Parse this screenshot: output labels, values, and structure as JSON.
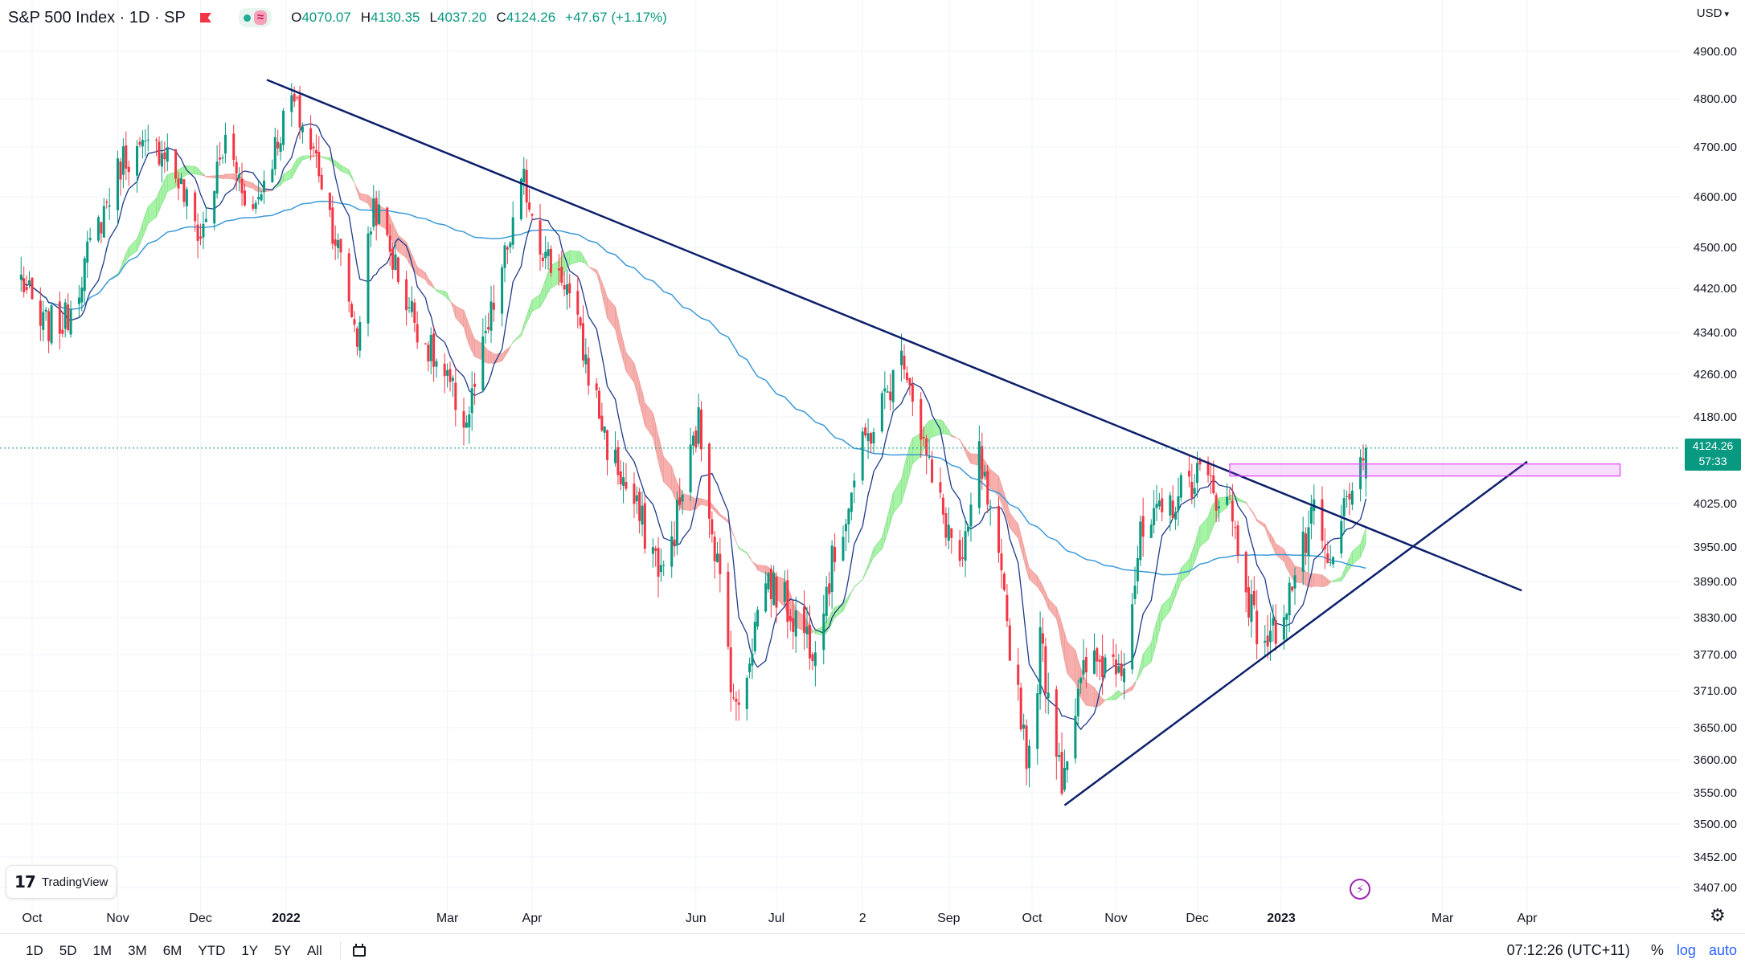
{
  "header": {
    "symbol": "S&P 500 Index · 1D · SP",
    "ohlc": [
      {
        "k": "O",
        "v": "4070.07"
      },
      {
        "k": "H",
        "v": "4130.35"
      },
      {
        "k": "L",
        "v": "4037.20"
      },
      {
        "k": "C",
        "v": "4124.26"
      },
      {
        "k": "",
        "v": "+47.67 (+1.17%)"
      }
    ],
    "status_symbol": "≈",
    "currency": "USD"
  },
  "last_price": {
    "value": "4124.26",
    "countdown": "57:33"
  },
  "logo": {
    "text": "TradingView"
  },
  "ranges": [
    "1D",
    "5D",
    "1M",
    "3M",
    "6M",
    "YTD",
    "1Y",
    "5Y",
    "All"
  ],
  "footer": {
    "clock": "07:12:26 (UTC+11)",
    "pct": "%",
    "log": "log",
    "auto": "auto"
  },
  "colors": {
    "up": "#089981",
    "down": "#f23645",
    "trend": "#0c1f6b",
    "sma_fast": "#1e3a8a",
    "sma_slow": "#3b9ad9",
    "ribbon_bull": "#a6f5a6",
    "ribbon_bear": "#f7b0ad",
    "zone": "#e040fb"
  },
  "chart_data": {
    "type": "candlestick",
    "title": "S&P 500 Index · 1D · SP",
    "xlabel": "",
    "ylabel": "",
    "ylim": [
      3380,
      4940
    ],
    "y_ticks": [
      4900,
      4800,
      4700,
      4600,
      4500,
      4420,
      4340,
      4260,
      4180,
      4025,
      3950,
      3890,
      3830,
      3770,
      3710,
      3650,
      3600,
      3550,
      3500,
      3452,
      3407
    ],
    "x_ticks": [
      "Oct",
      "Nov",
      "Dec",
      "2022",
      "Mar",
      "Apr",
      "Jun",
      "Jul",
      "2",
      "Sep",
      "Oct",
      "Nov",
      "Dec",
      "2023",
      "Mar",
      "Apr"
    ],
    "anchors": [
      {
        "date": "2021-09-27",
        "close": 4440
      },
      {
        "date": "2021-10-04",
        "close": 4350
      },
      {
        "date": "2021-10-13",
        "close": 4360
      },
      {
        "date": "2021-11-03",
        "close": 4680
      },
      {
        "date": "2021-11-18",
        "close": 4700
      },
      {
        "date": "2021-12-01",
        "close": 4520
      },
      {
        "date": "2021-12-10",
        "close": 4710
      },
      {
        "date": "2021-12-20",
        "close": 4570
      },
      {
        "date": "2022-01-03",
        "close": 4800
      },
      {
        "date": "2022-01-13",
        "close": 4660
      },
      {
        "date": "2022-01-27",
        "close": 4330
      },
      {
        "date": "2022-02-02",
        "close": 4590
      },
      {
        "date": "2022-02-14",
        "close": 4400
      },
      {
        "date": "2022-02-24",
        "close": 4290
      },
      {
        "date": "2022-03-08",
        "close": 4170
      },
      {
        "date": "2022-03-29",
        "close": 4630
      },
      {
        "date": "2022-04-06",
        "close": 4480
      },
      {
        "date": "2022-04-13",
        "close": 4440
      },
      {
        "date": "2022-04-29",
        "close": 4130
      },
      {
        "date": "2022-05-20",
        "close": 3900
      },
      {
        "date": "2022-06-02",
        "close": 4170
      },
      {
        "date": "2022-06-16",
        "close": 3670
      },
      {
        "date": "2022-06-27",
        "close": 3900
      },
      {
        "date": "2022-07-14",
        "close": 3790
      },
      {
        "date": "2022-08-01",
        "close": 4120
      },
      {
        "date": "2022-08-16",
        "close": 4300
      },
      {
        "date": "2022-08-26",
        "close": 4060
      },
      {
        "date": "2022-09-06",
        "close": 3910
      },
      {
        "date": "2022-09-12",
        "close": 4110
      },
      {
        "date": "2022-09-30",
        "close": 3590
      },
      {
        "date": "2022-10-04",
        "close": 3790
      },
      {
        "date": "2022-10-12",
        "close": 3580
      },
      {
        "date": "2022-10-21",
        "close": 3750
      },
      {
        "date": "2022-11-04",
        "close": 3770
      },
      {
        "date": "2022-11-10",
        "close": 3960
      },
      {
        "date": "2022-12-01",
        "close": 4080
      },
      {
        "date": "2022-12-13",
        "close": 4020
      },
      {
        "date": "2022-12-22",
        "close": 3820
      },
      {
        "date": "2022-12-28",
        "close": 3790
      },
      {
        "date": "2023-01-06",
        "close": 3900
      },
      {
        "date": "2023-01-13",
        "close": 4000
      },
      {
        "date": "2023-01-19",
        "close": 3900
      },
      {
        "date": "2023-01-26",
        "close": 4060
      },
      {
        "date": "2023-01-31",
        "close": 4076.59
      },
      {
        "date": "2023-02-01",
        "close": 4124.26
      }
    ],
    "overlays": [
      {
        "type": "trendline",
        "from": {
          "date": "2021-12-25",
          "value": 4840
        },
        "to": {
          "date": "2023-03-30",
          "value": 3875
        }
      },
      {
        "type": "trendline",
        "from": {
          "date": "2022-10-13",
          "value": 3530
        },
        "to": {
          "date": "2023-04-01",
          "value": 4100
        }
      },
      {
        "type": "rectangle",
        "from": {
          "date": "2022-12-13",
          "value": 4090
        },
        "to": {
          "date": "2023-05-05",
          "value": 4080
        }
      },
      {
        "type": "horizontal-line",
        "value": 4124.26
      }
    ]
  }
}
